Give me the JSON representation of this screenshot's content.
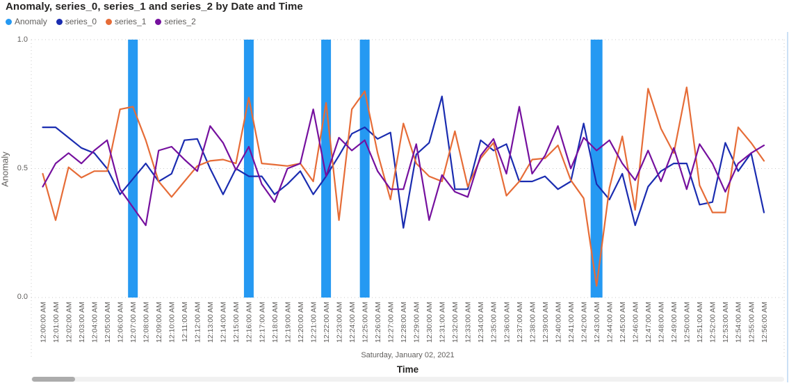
{
  "title": "Anomaly, series_0, series_1 and series_2 by Date and Time",
  "legend": [
    {
      "label": "Anomaly",
      "color": "#2599F2"
    },
    {
      "label": "series_0",
      "color": "#1A2CB0"
    },
    {
      "label": "series_1",
      "color": "#E66C37"
    },
    {
      "label": "series_2",
      "color": "#75109E"
    }
  ],
  "y_axis": {
    "title": "Anomaly",
    "ticks": [
      "1.0",
      "0.5",
      "0.0"
    ]
  },
  "x_axis": {
    "title": "Time",
    "date_label": "Saturday, January 02, 2021"
  },
  "colors": {
    "anomaly_bar": "#2599F2",
    "gridline": "#C9C9C9",
    "tick_text": "#605E5C"
  },
  "chart_data": {
    "type": "line",
    "title": "Anomaly, series_0, series_1 and series_2 by Date and Time",
    "xlabel": "Time",
    "ylabel": "Anomaly",
    "ylim": [
      0.0,
      1.0
    ],
    "y_ticks": [
      0.0,
      0.5,
      1.0
    ],
    "grid": "dotted horizontal at 0.0/0.5/1.0 with dotted left-right plot borders",
    "legend_position": "top-left",
    "date_label": "Saturday, January 02, 2021",
    "x": [
      "12:00:00 AM",
      "12:01:00 AM",
      "12:02:00 AM",
      "12:03:00 AM",
      "12:04:00 AM",
      "12:05:00 AM",
      "12:06:00 AM",
      "12:07:00 AM",
      "12:08:00 AM",
      "12:09:00 AM",
      "12:10:00 AM",
      "12:11:00 AM",
      "12:12:00 AM",
      "12:13:00 AM",
      "12:14:00 AM",
      "12:15:00 AM",
      "12:16:00 AM",
      "12:17:00 AM",
      "12:18:00 AM",
      "12:19:00 AM",
      "12:20:00 AM",
      "12:21:00 AM",
      "12:22:00 AM",
      "12:23:00 AM",
      "12:24:00 AM",
      "12:25:00 AM",
      "12:26:00 AM",
      "12:27:00 AM",
      "12:28:00 AM",
      "12:29:00 AM",
      "12:30:00 AM",
      "12:31:00 AM",
      "12:32:00 AM",
      "12:33:00 AM",
      "12:34:00 AM",
      "12:35:00 AM",
      "12:36:00 AM",
      "12:37:00 AM",
      "12:38:00 AM",
      "12:39:00 AM",
      "12:40:00 AM",
      "12:41:00 AM",
      "12:42:00 AM",
      "12:43:00 AM",
      "12:44:00 AM",
      "12:45:00 AM",
      "12:46:00 AM",
      "12:47:00 AM",
      "12:48:00 AM",
      "12:49:00 AM",
      "12:50:00 AM",
      "12:51:00 AM",
      "12:52:00 AM",
      "12:53:00 AM",
      "12:54:00 AM",
      "12:55:00 AM",
      "12:56:00 AM"
    ],
    "series": [
      {
        "name": "series_0",
        "color": "#1A2CB0",
        "values": [
          0.66,
          0.66,
          0.62,
          0.58,
          0.56,
          0.5,
          0.4,
          0.46,
          0.52,
          0.45,
          0.48,
          0.61,
          0.615,
          0.5,
          0.4,
          0.5,
          0.47,
          0.47,
          0.4,
          0.44,
          0.49,
          0.4,
          0.47,
          0.55,
          0.635,
          0.66,
          0.615,
          0.64,
          0.27,
          0.555,
          0.6,
          0.78,
          0.42,
          0.42,
          0.61,
          0.57,
          0.595,
          0.45,
          0.45,
          0.47,
          0.42,
          0.45,
          0.675,
          0.44,
          0.38,
          0.48,
          0.28,
          0.43,
          0.49,
          0.52,
          0.52,
          0.36,
          0.37,
          0.6,
          0.49,
          0.56,
          0.33
        ]
      },
      {
        "name": "series_1",
        "color": "#E66C37",
        "values": [
          0.48,
          0.3,
          0.505,
          0.465,
          0.49,
          0.49,
          0.73,
          0.74,
          0.61,
          0.45,
          0.39,
          0.45,
          0.51,
          0.53,
          0.535,
          0.52,
          0.775,
          0.52,
          0.515,
          0.51,
          0.52,
          0.45,
          0.755,
          0.3,
          0.73,
          0.8,
          0.56,
          0.38,
          0.675,
          0.52,
          0.47,
          0.45,
          0.645,
          0.43,
          0.54,
          0.6,
          0.395,
          0.45,
          0.535,
          0.54,
          0.59,
          0.455,
          0.385,
          0.045,
          0.425,
          0.625,
          0.34,
          0.81,
          0.655,
          0.56,
          0.815,
          0.435,
          0.33,
          0.33,
          0.66,
          0.6,
          0.53
        ]
      },
      {
        "name": "series_2",
        "color": "#75109E",
        "values": [
          0.43,
          0.52,
          0.56,
          0.52,
          0.57,
          0.61,
          0.42,
          0.35,
          0.28,
          0.57,
          0.585,
          0.535,
          0.49,
          0.665,
          0.6,
          0.495,
          0.585,
          0.44,
          0.37,
          0.5,
          0.52,
          0.73,
          0.47,
          0.62,
          0.57,
          0.61,
          0.49,
          0.42,
          0.42,
          0.595,
          0.3,
          0.475,
          0.41,
          0.39,
          0.55,
          0.615,
          0.48,
          0.74,
          0.48,
          0.55,
          0.665,
          0.5,
          0.62,
          0.57,
          0.61,
          0.52,
          0.455,
          0.57,
          0.45,
          0.58,
          0.42,
          0.595,
          0.52,
          0.41,
          0.52,
          0.56,
          0.59
        ]
      }
    ],
    "anomalies": {
      "name": "Anomaly",
      "color": "#2599F2",
      "bar_value": 1.0,
      "indices": [
        7,
        16,
        22,
        25,
        43
      ],
      "times": [
        "12:07:00 AM",
        "12:16:00 AM",
        "12:22:00 AM",
        "12:25:00 AM",
        "12:43:00 AM"
      ]
    }
  }
}
